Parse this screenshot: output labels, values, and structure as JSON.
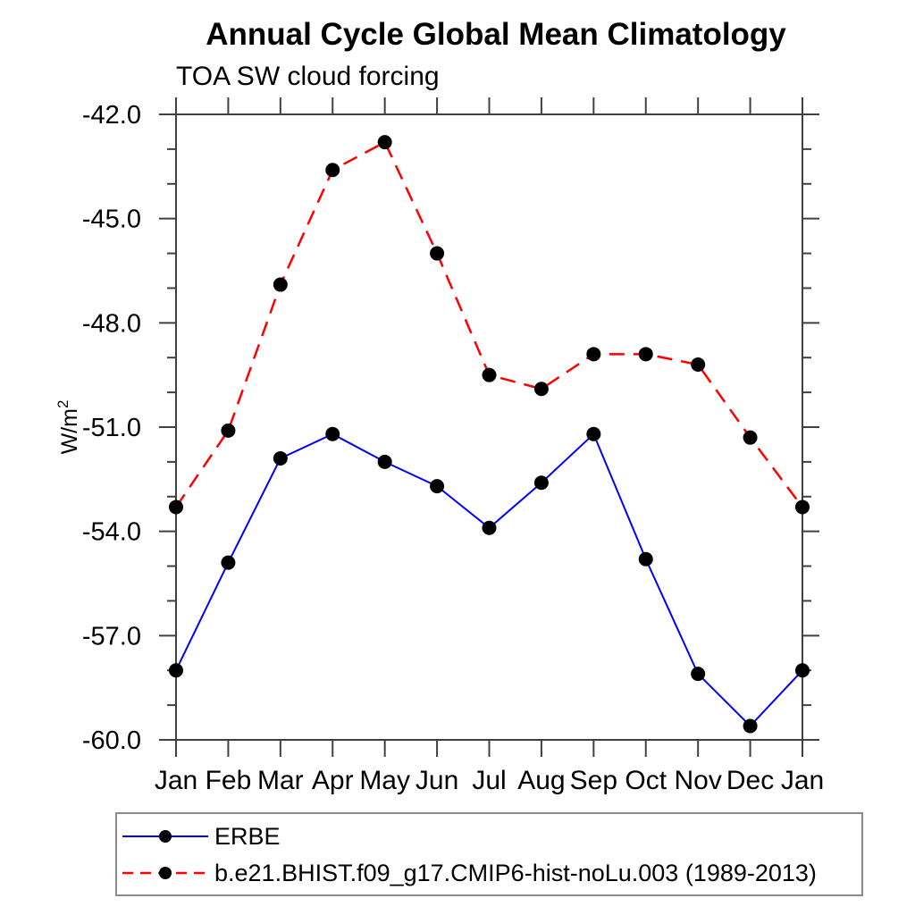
{
  "chart_data": {
    "type": "line",
    "title": "Annual Cycle Global Mean Climatology",
    "subtitle": "TOA SW cloud forcing",
    "ylabel": "W/m²",
    "x_categories": [
      "Jan",
      "Feb",
      "Mar",
      "Apr",
      "May",
      "Jun",
      "Jul",
      "Aug",
      "Sep",
      "Oct",
      "Nov",
      "Dec",
      "Jan"
    ],
    "ylim": [
      -60.0,
      -42.0
    ],
    "y_major_ticks": [
      -42.0,
      -45.0,
      -48.0,
      -51.0,
      -54.0,
      -57.0,
      -60.0
    ],
    "y_tick_labels": [
      "-42.0",
      "-45.0",
      "-48.0",
      "-51.0",
      "-54.0",
      "-57.0",
      "-60.0"
    ],
    "y_minor_step": 1.0,
    "grid": false,
    "legend_position": "below-bottom-left",
    "axis_color": "#404040",
    "legend_border_color": "#8a8a8a",
    "marker_color": "#000000",
    "series": [
      {
        "name": "ERBE",
        "color": "#0000ff",
        "line_style": "solid",
        "marker": "filled-circle",
        "values": [
          -58.0,
          -54.9,
          -51.9,
          -51.2,
          -52.0,
          -52.7,
          -53.9,
          -52.6,
          -51.2,
          -54.8,
          -58.1,
          -59.6,
          -58.0
        ]
      },
      {
        "name": "b.e21.BHIST.f09_g17.CMIP6-hist-noLu.003 (1989-2013)",
        "color": "#ff0000",
        "line_style": "dashed",
        "marker": "filled-circle",
        "values": [
          -53.3,
          -51.1,
          -46.9,
          -43.6,
          -42.8,
          -46.0,
          -49.5,
          -49.9,
          -48.9,
          -48.9,
          -49.2,
          -51.3,
          -53.3
        ]
      }
    ]
  }
}
